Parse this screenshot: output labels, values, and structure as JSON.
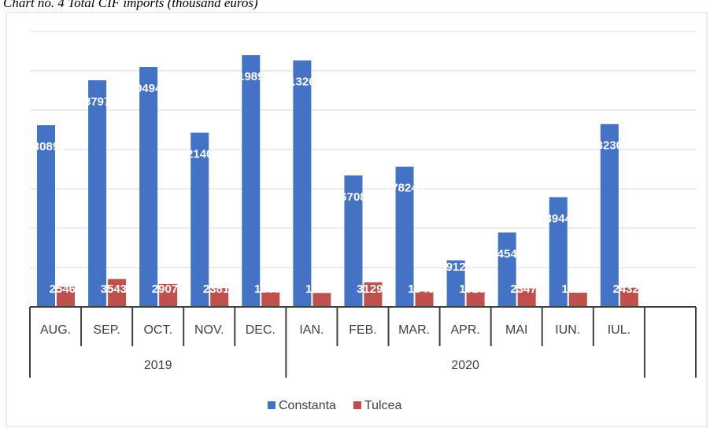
{
  "chart_data": {
    "type": "bar",
    "title": "Chart no. 4 Total CIF imports (thousand euros)",
    "categories": [
      "AUG.",
      "SEP.",
      "OCT.",
      "NOV.",
      "DEC.",
      "IAN.",
      "FEB.",
      "MAR.",
      "APR.",
      "MAI",
      "IUN.",
      "IUL.",
      null
    ],
    "years": [
      "2019",
      "2019",
      "2019",
      "2019",
      "2019",
      "2020",
      "2020",
      "2020",
      "2020",
      "2020",
      "2020",
      "2020",
      null
    ],
    "series": [
      {
        "name": "Constanta",
        "color": "#4472c4",
        "values": [
          230890,
          287977,
          304941,
          221408,
          319897,
          313262,
          167089,
          178249,
          59125,
          94548,
          139440,
          232305,
          null
        ]
      },
      {
        "name": "Tulcea",
        "color": "#c0504d",
        "values": [
          25468,
          35433,
          29072,
          23816,
          18608,
          17700,
          31291,
          19464,
          19204,
          23475,
          18230,
          24324,
          null
        ]
      }
    ],
    "ylim": [
      0,
      350000
    ],
    "yticks": [
      0,
      50000,
      100000,
      150000,
      200000,
      250000,
      300000,
      350000
    ],
    "grid": true,
    "legend": "bottom"
  }
}
